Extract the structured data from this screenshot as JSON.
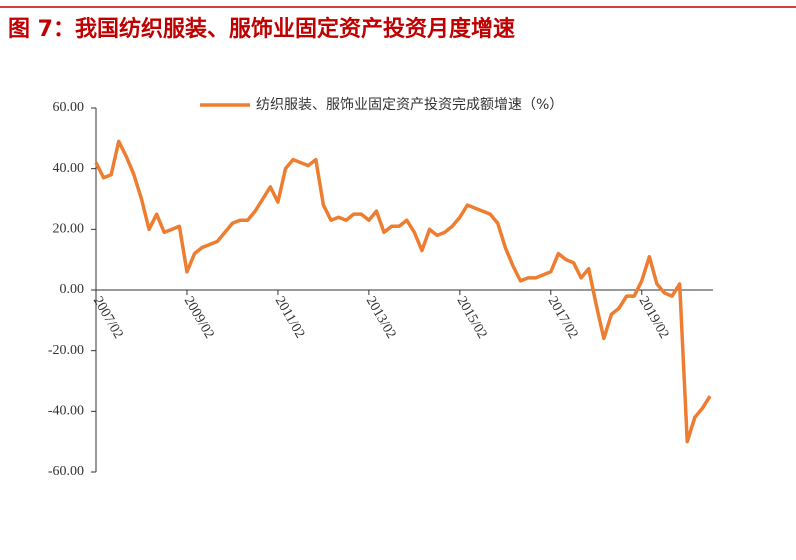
{
  "chart_data": {
    "type": "line",
    "title": "图 7：我国纺织服装、服饰业固定资产投资月度增速",
    "categories": [
      "2007/02",
      null,
      null,
      null,
      null,
      null,
      null,
      null,
      null,
      null,
      null,
      null,
      "2009/02",
      null,
      null,
      null,
      null,
      null,
      null,
      null,
      null,
      null,
      null,
      null,
      "2011/02",
      null,
      null,
      null,
      null,
      null,
      null,
      null,
      null,
      null,
      null,
      null,
      "2013/02",
      null,
      null,
      null,
      null,
      null,
      null,
      null,
      null,
      null,
      null,
      null,
      "2015/02",
      null,
      null,
      null,
      null,
      null,
      null,
      null,
      null,
      null,
      null,
      null,
      "2017/02",
      null,
      null,
      null,
      null,
      null,
      null,
      null,
      null,
      null,
      null,
      null,
      "2019/02",
      null,
      null,
      null,
      null,
      null,
      null,
      null,
      null,
      null
    ],
    "series": [
      {
        "name": "纺织服装、服饰业固定资产投资完成额增速（%）",
        "color": "#ed7d31",
        "values": [
          42,
          37,
          38,
          49,
          44,
          38,
          30,
          20,
          25,
          19,
          20,
          21,
          6,
          12,
          14,
          15,
          16,
          19,
          22,
          23,
          23,
          26,
          30,
          34,
          29,
          40,
          43,
          42,
          41,
          43,
          28,
          23,
          24,
          23,
          25,
          25,
          23,
          26,
          19,
          21,
          21,
          23,
          19,
          13,
          20,
          18,
          19,
          21,
          24,
          28,
          27,
          26,
          25,
          22,
          14,
          8,
          3,
          4,
          4,
          5,
          6,
          12,
          10,
          9,
          4,
          7,
          -5,
          -16,
          -8,
          -6,
          -2,
          -2,
          3,
          11,
          2,
          -1,
          -2,
          2,
          -50,
          -42,
          -39,
          -35
        ]
      }
    ],
    "ylim": [
      -60,
      60
    ],
    "yticks": [
      {
        "value": -60,
        "label": "-60.00"
      },
      {
        "value": -40,
        "label": "-40.00"
      },
      {
        "value": -20,
        "label": "-20.00"
      },
      {
        "value": 0,
        "label": "0.00"
      },
      {
        "value": 20,
        "label": "20.00"
      },
      {
        "value": 40,
        "label": "40.00"
      },
      {
        "value": 60,
        "label": "60.00"
      }
    ]
  }
}
